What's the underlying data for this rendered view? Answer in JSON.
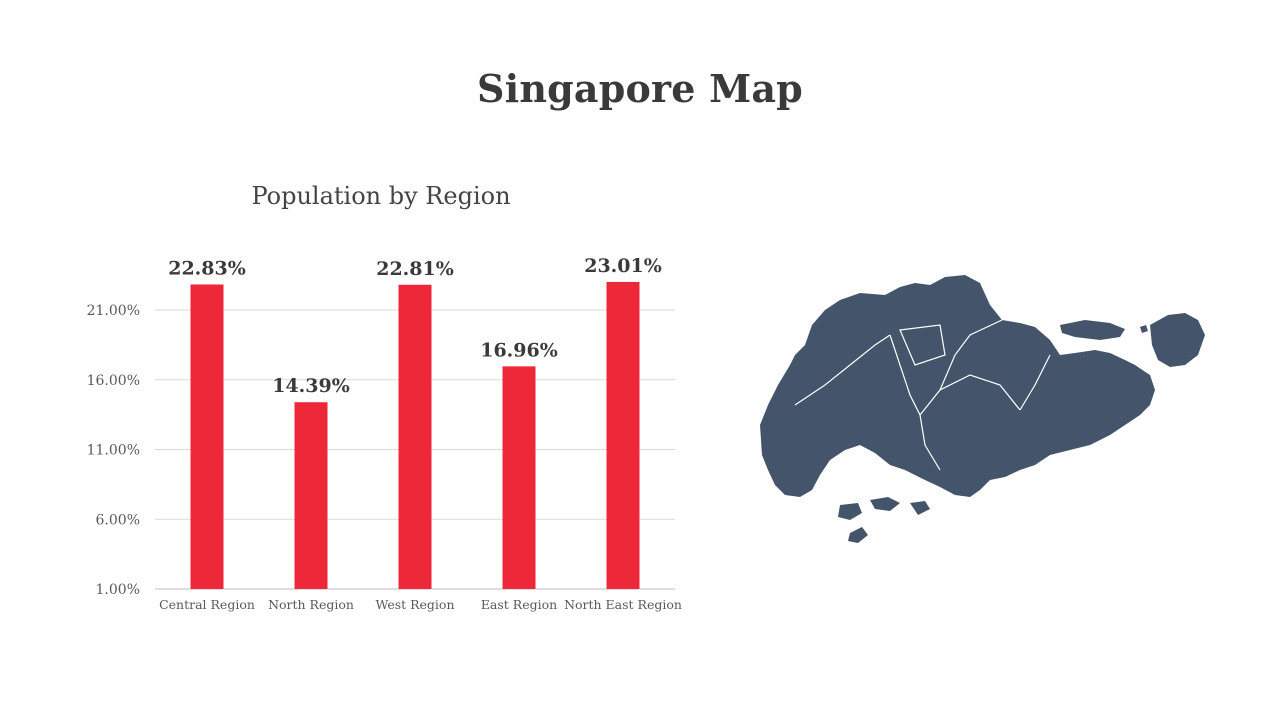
{
  "slide": {
    "title": "Singapore Map"
  },
  "chart_data": {
    "type": "bar",
    "title": "Population by Region",
    "xlabel": "",
    "ylabel": "",
    "categories": [
      "Central Region",
      "North Region",
      "West Region",
      "East Region",
      "North East Region"
    ],
    "values": [
      22.83,
      14.39,
      22.81,
      16.96,
      23.01
    ],
    "data_labels": [
      "22.83%",
      "14.39%",
      "22.81%",
      "16.96%",
      "23.01%"
    ],
    "y_ticks": [
      1,
      6,
      11,
      16,
      21
    ],
    "y_tick_labels": [
      "1.00%",
      "6.00%",
      "11.00%",
      "16.00%",
      "21.00%"
    ],
    "ylim": [
      1,
      21
    ],
    "grid": true,
    "legend": "none",
    "colors": {
      "bar": "#ed2939",
      "grid": "#d9d9d9",
      "axis": "#bfbfbf"
    }
  },
  "map": {
    "icon": "singapore-map-icon",
    "fill_color": "#44546a",
    "border_color": "#ffffff"
  }
}
